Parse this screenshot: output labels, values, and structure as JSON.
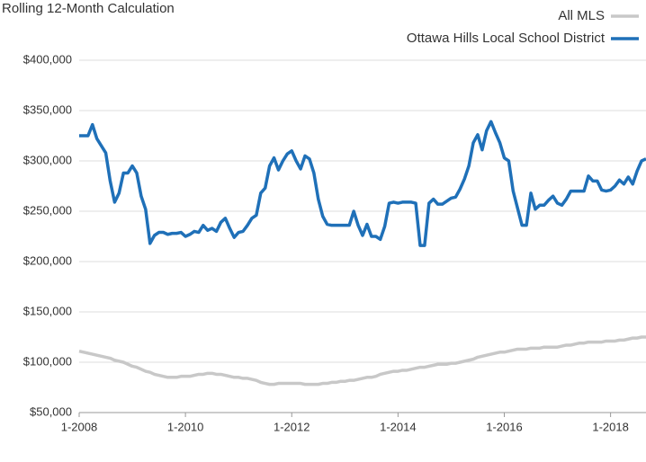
{
  "chart_data": {
    "type": "line",
    "title": "Rolling 12-Month Calculation",
    "categories": [
      "1-2008",
      null,
      null,
      null,
      null,
      null,
      null,
      null,
      null,
      null,
      null,
      null,
      null,
      null,
      null,
      null,
      null,
      null,
      null,
      null,
      null,
      null,
      null,
      null,
      "1-2010",
      null,
      null,
      null,
      null,
      null,
      null,
      null,
      null,
      null,
      null,
      null,
      null,
      null,
      null,
      null,
      null,
      null,
      null,
      null,
      null,
      null,
      null,
      null,
      "1-2012",
      null,
      null,
      null,
      null,
      null,
      null,
      null,
      null,
      null,
      null,
      null,
      null,
      null,
      null,
      null,
      null,
      null,
      null,
      null,
      null,
      null,
      null,
      null,
      "1-2014",
      null,
      null,
      null,
      null,
      null,
      null,
      null,
      null,
      null,
      null,
      null,
      null,
      null,
      null,
      null,
      null,
      null,
      null,
      null,
      null,
      null,
      null,
      null,
      "1-2016",
      null,
      null,
      null,
      null,
      null,
      null,
      null,
      null,
      null,
      null,
      null,
      null,
      null,
      null,
      null,
      null,
      null,
      null,
      null,
      null,
      null,
      null,
      null,
      "1-2018",
      null,
      null,
      null,
      null,
      null,
      null,
      null,
      null
    ],
    "series": [
      {
        "name": "All MLS",
        "color": "#c8c8c8",
        "values": [
          111000,
          110000,
          109000,
          108000,
          107000,
          106000,
          105000,
          104000,
          102000,
          101000,
          100000,
          98000,
          96000,
          95000,
          93000,
          91000,
          90000,
          88000,
          87000,
          86000,
          85000,
          85000,
          85000,
          86000,
          86000,
          86000,
          87000,
          88000,
          88000,
          89000,
          89000,
          88000,
          88000,
          87000,
          86000,
          85000,
          85000,
          84000,
          84000,
          83000,
          82000,
          80000,
          79000,
          78000,
          78000,
          79000,
          79000,
          79000,
          79000,
          79000,
          79000,
          78000,
          78000,
          78000,
          78000,
          79000,
          79000,
          80000,
          80000,
          81000,
          81000,
          82000,
          82000,
          83000,
          84000,
          85000,
          85000,
          86000,
          88000,
          89000,
          90000,
          91000,
          91000,
          92000,
          92000,
          93000,
          94000,
          95000,
          95000,
          96000,
          97000,
          98000,
          98000,
          98000,
          99000,
          99000,
          100000,
          101000,
          102000,
          103000,
          105000,
          106000,
          107000,
          108000,
          109000,
          110000,
          110000,
          111000,
          112000,
          113000,
          113000,
          113000,
          114000,
          114000,
          114000,
          115000,
          115000,
          115000,
          115000,
          116000,
          117000,
          117000,
          118000,
          119000,
          119000,
          120000,
          120000,
          120000,
          120000,
          121000,
          121000,
          121000,
          122000,
          122000,
          123000,
          124000,
          124000,
          125000,
          125000
        ]
      },
      {
        "name": "Ottawa Hills Local School District",
        "color": "#1f70b8",
        "values": [
          325000,
          325000,
          325000,
          336000,
          322000,
          315000,
          308000,
          280000,
          259000,
          268000,
          288000,
          288000,
          295000,
          288000,
          265000,
          252000,
          218000,
          226000,
          229000,
          229000,
          227000,
          228000,
          228000,
          229000,
          225000,
          227000,
          230000,
          229000,
          236000,
          231000,
          233000,
          230000,
          239000,
          243000,
          233000,
          224000,
          229000,
          230000,
          236000,
          243000,
          246000,
          268000,
          273000,
          295000,
          303000,
          291000,
          300000,
          307000,
          310000,
          300000,
          292000,
          305000,
          302000,
          288000,
          262000,
          245000,
          237000,
          236000,
          236000,
          236000,
          236000,
          236000,
          250000,
          236000,
          226000,
          237000,
          225000,
          225000,
          222000,
          235000,
          258000,
          259000,
          258000,
          259000,
          259000,
          259000,
          258000,
          216000,
          216000,
          258000,
          262000,
          257000,
          257000,
          260000,
          263000,
          264000,
          272000,
          282000,
          295000,
          318000,
          326000,
          311000,
          330000,
          339000,
          328000,
          318000,
          303000,
          300000,
          270000,
          253000,
          236000,
          236000,
          268000,
          252000,
          256000,
          256000,
          261000,
          265000,
          258000,
          256000,
          262000,
          270000,
          270000,
          270000,
          270000,
          285000,
          280000,
          280000,
          271000,
          270000,
          271000,
          275000,
          281000,
          277000,
          284000,
          277000,
          290000,
          300000,
          302000
        ]
      }
    ],
    "ylim": [
      50000,
      400000
    ],
    "yticks": [
      {
        "value": 50000,
        "label": "$50,000"
      },
      {
        "value": 100000,
        "label": "$100,000"
      },
      {
        "value": 150000,
        "label": "$150,000"
      },
      {
        "value": 200000,
        "label": "$200,000"
      },
      {
        "value": 250000,
        "label": "$250,000"
      },
      {
        "value": 300000,
        "label": "$300,000"
      },
      {
        "value": 350000,
        "label": "$350,000"
      },
      {
        "value": 400000,
        "label": "$400,000"
      }
    ],
    "grid": true
  }
}
